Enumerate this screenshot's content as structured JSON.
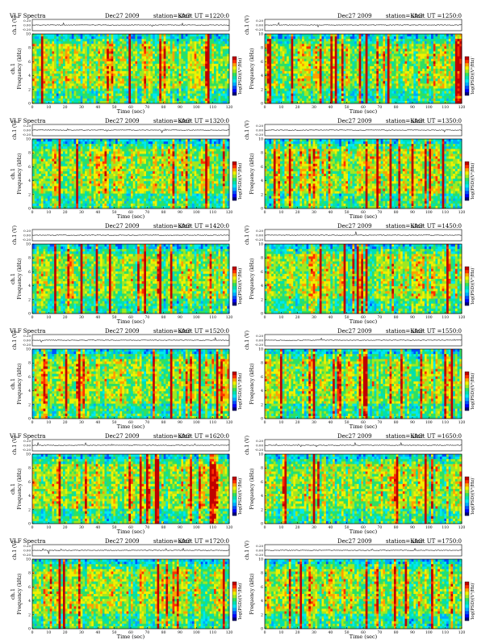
{
  "colors": {
    "colormap": [
      "#00007a",
      "#0000ff",
      "#0050ff",
      "#00a8ff",
      "#00e8f0",
      "#00e0b0",
      "#30e060",
      "#a0e820",
      "#f0f000",
      "#ffa000",
      "#ff3000",
      "#c00000"
    ],
    "background_cyan": "#00e0e8",
    "axis": "#000000"
  },
  "labels": {
    "header_left": "VLF Spectra",
    "date": "Dec27 2009",
    "station": "station=KAG",
    "ut_prefix": "start  UT  ="
  },
  "chart_data": [
    {
      "type": "heatmap",
      "title_left": "VLF Spectra",
      "date": "Dec27 2009",
      "station": "station=KAG",
      "start_ut": "1220:0",
      "ch_label": "ch.1 (V)",
      "ch_ticks": [
        "0.20",
        "0.00",
        "-0.20"
      ],
      "ylabel": "Frequency  (kHz)",
      "channel_label": "ch.1",
      "y_ticks": [
        "0",
        "2",
        "4",
        "6",
        "8",
        "10"
      ],
      "ylim": [
        0,
        10
      ],
      "xlabel": "Time  (sec)",
      "xlim": [
        0,
        120
      ],
      "x_ticks": [
        "0",
        "10",
        "20",
        "30",
        "40",
        "50",
        "60",
        "70",
        "80",
        "90",
        "100",
        "110",
        "120"
      ],
      "colorbar_label": "log(PSD)(V²/Hz)",
      "colorbar_ticks": [
        "-",
        "-"
      ]
    },
    {
      "type": "heatmap",
      "title_left": "",
      "date": "Dec27 2009",
      "station": "station=KAG",
      "start_ut": "1250:0",
      "ch_label": "ch.1 (V)",
      "ch_ticks": [
        "0.20",
        "0.00",
        "-0.20"
      ],
      "ylabel": "Frequency  (kHz)",
      "channel_label": "",
      "y_ticks": [
        "0",
        "2",
        "4",
        "6",
        "8",
        "10"
      ],
      "ylim": [
        0,
        10
      ],
      "xlabel": "Time  (sec)",
      "xlim": [
        0,
        120
      ],
      "x_ticks": [
        "0",
        "10",
        "20",
        "30",
        "40",
        "50",
        "60",
        "70",
        "80",
        "90",
        "100",
        "110",
        "120"
      ],
      "colorbar_label": "log(PSD)(V²/Hz)",
      "colorbar_ticks": [
        "-",
        "-"
      ]
    },
    {
      "type": "heatmap",
      "title_left": "VLF Spectra",
      "date": "Dec27 2009",
      "station": "station=KAG",
      "start_ut": "1320:0",
      "ch_label": "ch.1 (V)",
      "ch_ticks": [
        "0.20",
        "0.00",
        "-0.20"
      ],
      "ylabel": "Frequency  (kHz)",
      "channel_label": "ch.1",
      "y_ticks": [
        "0",
        "2",
        "4",
        "6",
        "8",
        "10"
      ],
      "ylim": [
        0,
        10
      ],
      "xlabel": "Time  (sec)",
      "xlim": [
        0,
        120
      ],
      "x_ticks": [
        "0",
        "10",
        "20",
        "30",
        "40",
        "50",
        "60",
        "70",
        "80",
        "90",
        "100",
        "110",
        "120"
      ],
      "colorbar_label": "log(PSD)(V²/Hz)",
      "colorbar_ticks": [
        "-",
        "-"
      ]
    },
    {
      "type": "heatmap",
      "title_left": "",
      "date": "Dec27 2009",
      "station": "station=KAG",
      "start_ut": "1350:0",
      "ch_label": "ch.1 (V)",
      "ch_ticks": [
        "0.20",
        "0.00",
        "-0.20"
      ],
      "ylabel": "Frequency  (kHz)",
      "channel_label": "",
      "y_ticks": [
        "0",
        "2",
        "4",
        "6",
        "8",
        "10"
      ],
      "ylim": [
        0,
        10
      ],
      "xlabel": "Time  (sec)",
      "xlim": [
        0,
        120
      ],
      "x_ticks": [
        "0",
        "10",
        "20",
        "30",
        "40",
        "50",
        "60",
        "70",
        "80",
        "90",
        "100",
        "110",
        "120"
      ],
      "colorbar_label": "log(PSD)(V²/Hz)",
      "colorbar_ticks": [
        "-",
        "-"
      ]
    },
    {
      "type": "heatmap",
      "title_left": "",
      "date": "Dec27 2009",
      "station": "station=KAG",
      "start_ut": "1420:0",
      "ch_label": "ch.1 (V)",
      "ch_ticks": [
        "0.20",
        "0.00",
        "-0.20"
      ],
      "ylabel": "Frequency  (kHz)",
      "channel_label": "ch.1",
      "y_ticks": [
        "0",
        "2",
        "4",
        "6",
        "8",
        "10"
      ],
      "ylim": [
        0,
        10
      ],
      "xlabel": "Time  (sec)",
      "xlim": [
        0,
        120
      ],
      "x_ticks": [
        "0",
        "10",
        "20",
        "30",
        "40",
        "50",
        "60",
        "70",
        "80",
        "90",
        "100",
        "110",
        "120"
      ],
      "colorbar_label": "log(PSD)(V²/Hz)",
      "colorbar_ticks": [
        "-",
        "-"
      ]
    },
    {
      "type": "heatmap",
      "title_left": "",
      "date": "Dec27 2009",
      "station": "station=KAG",
      "start_ut": "1450:0",
      "ch_label": "ch.1 (V)",
      "ch_ticks": [
        "0.20",
        "0.00",
        "-0.20"
      ],
      "ylabel": "Frequency  (kHz)",
      "channel_label": "",
      "y_ticks": [
        "0",
        "2",
        "4",
        "6",
        "8",
        "10"
      ],
      "ylim": [
        0,
        10
      ],
      "xlabel": "Time  (sec)",
      "xlim": [
        0,
        120
      ],
      "x_ticks": [
        "0",
        "10",
        "20",
        "30",
        "40",
        "50",
        "60",
        "70",
        "80",
        "90",
        "100",
        "110",
        "120"
      ],
      "colorbar_label": "log(PSD)(V²/Hz)",
      "colorbar_ticks": [
        "-",
        "-"
      ]
    },
    {
      "type": "heatmap",
      "title_left": "VLF Spectra",
      "date": "Dec27 2009",
      "station": "station=KAG",
      "start_ut": "1520:0",
      "ch_label": "ch.1 (V)",
      "ch_ticks": [
        "0.20",
        "0.00",
        "-0.20"
      ],
      "ylabel": "Frequency  (kHz)",
      "channel_label": "ch.1",
      "y_ticks": [
        "0",
        "2",
        "4",
        "6",
        "8",
        "10"
      ],
      "ylim": [
        0,
        10
      ],
      "xlabel": "Time  (sec)",
      "xlim": [
        0,
        120
      ],
      "x_ticks": [
        "0",
        "10",
        "20",
        "30",
        "40",
        "50",
        "60",
        "70",
        "80",
        "90",
        "100",
        "110",
        "120"
      ],
      "colorbar_label": "log(PSD)(V²/Hz)",
      "colorbar_ticks": [
        "-",
        "-"
      ]
    },
    {
      "type": "heatmap",
      "title_left": "",
      "date": "Dec27 2009",
      "station": "station=KAG",
      "start_ut": "1550:0",
      "ch_label": "ch.1 (V)",
      "ch_ticks": [
        "0.20",
        "0.00",
        "-0.20"
      ],
      "ylabel": "Frequency  (kHz)",
      "channel_label": "",
      "y_ticks": [
        "0",
        "2",
        "4",
        "6",
        "8",
        "10"
      ],
      "ylim": [
        0,
        10
      ],
      "xlabel": "Time  (sec)",
      "xlim": [
        0,
        120
      ],
      "x_ticks": [
        "0",
        "10",
        "20",
        "30",
        "40",
        "50",
        "60",
        "70",
        "80",
        "90",
        "100",
        "110",
        "120"
      ],
      "colorbar_label": "log(PSD)(V²/Hz)",
      "colorbar_ticks": [
        "-",
        "-"
      ]
    },
    {
      "type": "heatmap",
      "title_left": "VLF Spectra",
      "date": "Dec27 2009",
      "station": "station=KAG",
      "start_ut": "1620:0",
      "ch_label": "ch.1 (V)",
      "ch_ticks": [
        "0.20",
        "0.00",
        "-0.20"
      ],
      "ylabel": "Frequency  (kHz)",
      "channel_label": "ch.1",
      "y_ticks": [
        "0",
        "2",
        "4",
        "6",
        "8",
        "10"
      ],
      "ylim": [
        0,
        10
      ],
      "xlabel": "Time  (sec)",
      "xlim": [
        0,
        120
      ],
      "x_ticks": [
        "0",
        "10",
        "20",
        "30",
        "40",
        "50",
        "60",
        "70",
        "80",
        "90",
        "100",
        "110",
        "120"
      ],
      "colorbar_label": "log(PSD)(V²/Hz)",
      "colorbar_ticks": [
        "-",
        "-"
      ]
    },
    {
      "type": "heatmap",
      "title_left": "",
      "date": "Dec27 2009",
      "station": "station=KAG",
      "start_ut": "1650:0",
      "ch_label": "ch.1 (V)",
      "ch_ticks": [
        "0.20",
        "0.00",
        "-0.20"
      ],
      "ylabel": "Frequency  (kHz)",
      "channel_label": "",
      "y_ticks": [
        "0",
        "2",
        "4",
        "6",
        "8",
        "10"
      ],
      "ylim": [
        0,
        10
      ],
      "xlabel": "Time  (sec)",
      "xlim": [
        0,
        120
      ],
      "x_ticks": [
        "0",
        "10",
        "20",
        "30",
        "40",
        "50",
        "60",
        "70",
        "80",
        "90",
        "100",
        "110",
        "120"
      ],
      "colorbar_label": "log(PSD)(V²/Hz)",
      "colorbar_ticks": [
        "-",
        "-"
      ]
    },
    {
      "type": "heatmap",
      "title_left": "VLF Spectra",
      "date": "Dec27 2009",
      "station": "station=KAG",
      "start_ut": "1720:0",
      "ch_label": "ch.1 (V)",
      "ch_ticks": [
        "0.20",
        "0.00",
        "-0.20"
      ],
      "ylabel": "Frequency  (kHz)",
      "channel_label": "ch.1",
      "y_ticks": [
        "0",
        "2",
        "4",
        "6",
        "8",
        "10"
      ],
      "ylim": [
        0,
        10
      ],
      "xlabel": "Time  (sec)",
      "xlim": [
        0,
        120
      ],
      "x_ticks": [
        "0",
        "10",
        "20",
        "30",
        "40",
        "50",
        "60",
        "70",
        "80",
        "90",
        "100",
        "110",
        "120"
      ],
      "colorbar_label": "log(PSD)(V²/Hz)",
      "colorbar_ticks": [
        "-",
        "-"
      ]
    },
    {
      "type": "heatmap",
      "title_left": "",
      "date": "Dec27 2009",
      "station": "station=KAG",
      "start_ut": "1750:0",
      "ch_label": "ch.1 (V)",
      "ch_ticks": [
        "0.20",
        "0.00",
        "-0.20"
      ],
      "ylabel": "Frequency  (kHz)",
      "channel_label": "",
      "y_ticks": [
        "0",
        "2",
        "4",
        "6",
        "8",
        "10"
      ],
      "ylim": [
        0,
        10
      ],
      "xlabel": "Time  (sec)",
      "xlim": [
        0,
        120
      ],
      "x_ticks": [
        "0",
        "10",
        "20",
        "30",
        "40",
        "50",
        "60",
        "70",
        "80",
        "90",
        "100",
        "110",
        "120"
      ],
      "colorbar_label": "log(PSD)(V²/Hz)",
      "colorbar_ticks": [
        "-",
        "-"
      ]
    }
  ]
}
